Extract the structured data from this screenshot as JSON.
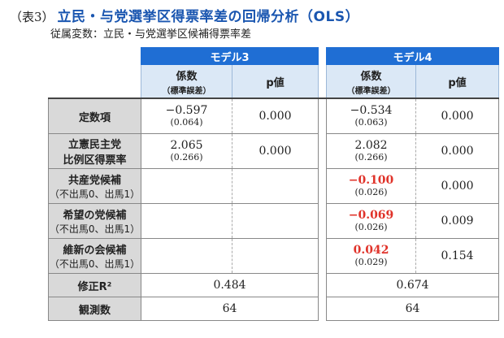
{
  "title": {
    "prefix": "（表3）",
    "main": "立民・与党選挙区得票率差の回帰分析（OLS）"
  },
  "subtitle": "従属変数：立民・与党選挙区候補得票率差",
  "models": [
    {
      "name": "モデル3",
      "coef_label": "係数",
      "coef_sub": "（標準誤差）",
      "p_label": "p値"
    },
    {
      "name": "モデル4",
      "coef_label": "係数",
      "coef_sub": "（標準誤差）",
      "p_label": "p値"
    }
  ],
  "rows": [
    {
      "label": "定数項",
      "sub": "",
      "m3": {
        "coef": "−0.597",
        "se": "(0.064)",
        "p": "0.000"
      },
      "m4": {
        "coef": "−0.534",
        "se": "(0.063)",
        "p": "0.000"
      }
    },
    {
      "label": "立憲民主党",
      "label2": "比例区得票率",
      "sub": "",
      "m3": {
        "coef": "2.065",
        "se": "(0.266)",
        "p": "0.000"
      },
      "m4": {
        "coef": "2.082",
        "se": "(0.266)",
        "p": "0.000"
      }
    },
    {
      "label": "共産党候補",
      "sub": "（不出馬0、出馬1）",
      "m3": {
        "coef": "",
        "se": "",
        "p": ""
      },
      "m4": {
        "coef": "−0.100",
        "se": "(0.026)",
        "p": "0.000"
      }
    },
    {
      "label": "希望の党候補",
      "sub": "（不出馬0、出馬1）",
      "m3": {
        "coef": "",
        "se": "",
        "p": ""
      },
      "m4": {
        "coef": "−0.069",
        "se": "(0.026)",
        "p": "0.009"
      }
    },
    {
      "label": "維新の会候補",
      "sub": "（不出馬0、出馬1）",
      "m3": {
        "coef": "",
        "se": "",
        "p": ""
      },
      "m4": {
        "coef": "0.042",
        "se": "(0.029)",
        "p": "0.154"
      }
    }
  ],
  "adj_r2": {
    "label": "修正R²",
    "m3": "0.484",
    "m4": "0.674"
  },
  "n_obs": {
    "label": "観測数",
    "m3": "64",
    "m4": "64"
  },
  "colors": {
    "title_blue": "#1a56b0",
    "header_blue": "#1f6ed4",
    "subheader_bg": "#dbe8f6",
    "label_bg": "#d9d9d9",
    "highlight_red": "#e0332a"
  }
}
